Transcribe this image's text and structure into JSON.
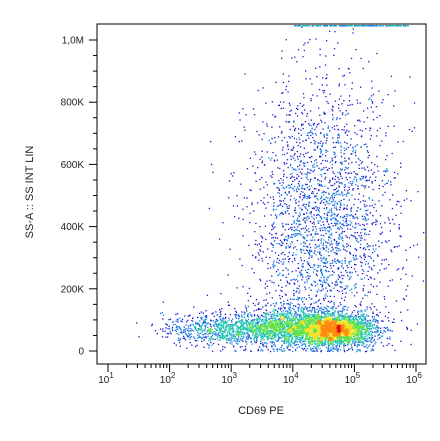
{
  "chart_data": {
    "type": "scatter",
    "title": "",
    "xlabel": "CD69 PE",
    "ylabel": "SS-A :: SS INT LIN",
    "x_scale": "log",
    "x_range": [
      10,
      1000000
    ],
    "y_range": [
      0,
      1050000
    ],
    "x_ticks": [
      {
        "value": 10,
        "base": "10",
        "exp": "1"
      },
      {
        "value": 100,
        "base": "10",
        "exp": "2"
      },
      {
        "value": 1000,
        "base": "10",
        "exp": "3"
      },
      {
        "value": 10000,
        "base": "10",
        "exp": "4"
      },
      {
        "value": 100000,
        "base": "10",
        "exp": "5"
      },
      {
        "value": 1000000,
        "base": "10",
        "exp": "6"
      }
    ],
    "y_ticks": [
      {
        "value": 0,
        "label": "0"
      },
      {
        "value": 200000,
        "label": "200K"
      },
      {
        "value": 400000,
        "label": "400K"
      },
      {
        "value": 600000,
        "label": "600K"
      },
      {
        "value": 800000,
        "label": "800K"
      },
      {
        "value": 1000000,
        "label": "1,0M"
      }
    ],
    "grid": false,
    "colormap": [
      "#1a1acc",
      "#1e7be0",
      "#22c4b4",
      "#5ee04a",
      "#f0e020",
      "#ff8a10",
      "#e81010"
    ],
    "populations": [
      {
        "name": "",
        "x_center": 50000,
        "x_sd_decades": 0.32,
        "y_center": 70000,
        "y_sd": 25000,
        "points": 2200
      },
      {
        "name": "",
        "x_center": 8000,
        "x_sd_decades": 0.45,
        "y_center": 80000,
        "y_sd": 30000,
        "points": 1600
      },
      {
        "name": "",
        "x_center": 600,
        "x_sd_decades": 0.45,
        "y_center": 70000,
        "y_sd": 25000,
        "points": 700
      },
      {
        "name": "",
        "x_center": 30000,
        "x_sd_decades": 0.6,
        "y_center": 400000,
        "y_sd": 230000,
        "points": 2600
      }
    ]
  }
}
